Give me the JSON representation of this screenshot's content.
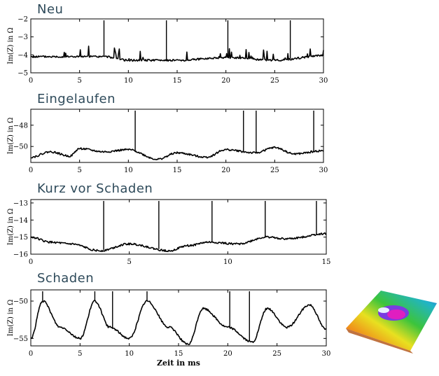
{
  "chart_data": [
    {
      "type": "line",
      "title": "Neu",
      "xlabel": "",
      "ylabel": "Im(Z) in Ω",
      "xlim": [
        0,
        30
      ],
      "ylim": [
        -5,
        -2
      ],
      "xticks": [
        0,
        5,
        10,
        15,
        20,
        25,
        30
      ],
      "yticks": [
        -5,
        -4,
        -3,
        -2
      ],
      "baseline": -4.2,
      "series": [
        {
          "x": [
            0,
            7.5,
            10,
            15,
            20,
            25,
            30
          ],
          "values": [
            -4.1,
            -4.1,
            -4.3,
            -4.3,
            -4.15,
            -4.3,
            -4.05
          ]
        }
      ],
      "spikes": [
        7.5,
        13.9,
        20.2,
        26.6
      ]
    },
    {
      "type": "line",
      "title": "Eingelaufen",
      "xlabel": "",
      "ylabel": "Im(Z) in Ω",
      "xlim": [
        0,
        30
      ],
      "ylim": [
        -51.5,
        -46.5
      ],
      "xticks": [
        0,
        5,
        10,
        15,
        20,
        25,
        30
      ],
      "yticks": [
        -50,
        -48
      ],
      "series": [
        {
          "x": [
            0,
            2,
            4,
            5,
            7.5,
            10,
            13,
            15,
            18,
            20,
            23,
            25,
            27,
            30
          ],
          "values": [
            -51,
            -50.5,
            -50.9,
            -50.2,
            -50.5,
            -50.3,
            -51.2,
            -50.6,
            -51,
            -50.3,
            -50.6,
            -50.1,
            -50.7,
            -50.4
          ]
        }
      ],
      "spikes": [
        10.7,
        21.8,
        23.1,
        29
      ]
    },
    {
      "type": "line",
      "title": "Kurz vor Schaden",
      "xlabel": "",
      "ylabel": "Im(Z) in Ω",
      "xlim": [
        0,
        15
      ],
      "ylim": [
        -16,
        -12.8
      ],
      "xticks": [
        0,
        5,
        10,
        15
      ],
      "yticks": [
        -16,
        -15,
        -14,
        -13
      ],
      "series": [
        {
          "x": [
            0,
            1,
            2,
            3.5,
            5,
            7,
            8,
            9,
            10.5,
            12,
            13,
            15
          ],
          "values": [
            -15,
            -15.3,
            -15.4,
            -15.8,
            -15.4,
            -15.8,
            -15.5,
            -15.3,
            -15.4,
            -15,
            -15.1,
            -14.8
          ]
        }
      ],
      "spikes": [
        3.7,
        6.5,
        9.2,
        11.9,
        14.5
      ]
    },
    {
      "type": "line",
      "title": "Schaden",
      "xlabel": "Zeit in ms",
      "ylabel": "Im(Z) in Ω",
      "xlim": [
        0,
        30
      ],
      "ylim": [
        -56,
        -48.5
      ],
      "xticks": [
        0,
        5,
        10,
        15,
        20,
        25,
        30
      ],
      "yticks": [
        -55,
        -50
      ],
      "series": [
        {
          "x": [
            0,
            1.2,
            3,
            5,
            6.5,
            8,
            10,
            11.8,
            14,
            16,
            17.5,
            20,
            22.5,
            24,
            26,
            28.3,
            30
          ],
          "values": [
            -55,
            -50,
            -53.5,
            -55,
            -50,
            -53.5,
            -55,
            -50,
            -53.5,
            -55.8,
            -51,
            -53.5,
            -55.5,
            -51,
            -53.5,
            -50.5,
            -53.8
          ]
        }
      ],
      "spikes": [
        1.2,
        6.5,
        8.3,
        11.8,
        20.2,
        22.2
      ]
    }
  ],
  "thumbnail": {
    "icon": "3d-surface-plot-thumbnail"
  }
}
